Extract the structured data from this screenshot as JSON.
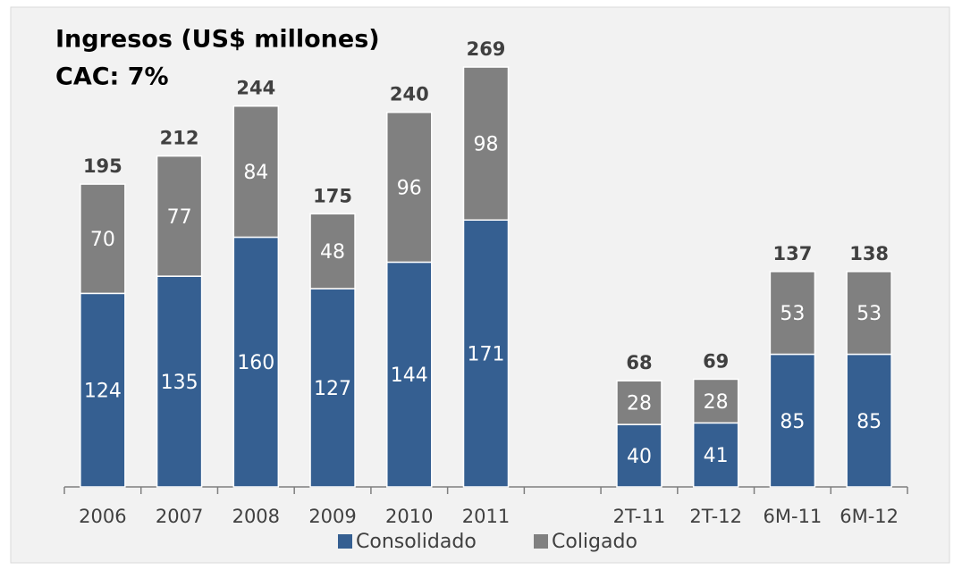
{
  "chart_data": {
    "type": "stacked_bar",
    "title": "Ingresos (US$ millones)",
    "subtitle": "CAC: 7%",
    "categories": [
      "2006",
      "2007",
      "2008",
      "2009",
      "2010",
      "2011",
      null,
      "2T-11",
      "2T-12",
      "6M-11",
      "6M-12"
    ],
    "series": [
      {
        "name": "Consolidado",
        "color": "#355f91",
        "values": [
          124,
          135,
          160,
          127,
          144,
          171,
          null,
          40,
          41,
          85,
          85
        ]
      },
      {
        "name": "Coligado",
        "color": "#808080",
        "values": [
          70,
          77,
          84,
          48,
          96,
          98,
          null,
          28,
          28,
          53,
          53
        ]
      }
    ],
    "totals": [
      195,
      212,
      244,
      175,
      240,
      269,
      null,
      68,
      69,
      137,
      138
    ]
  }
}
